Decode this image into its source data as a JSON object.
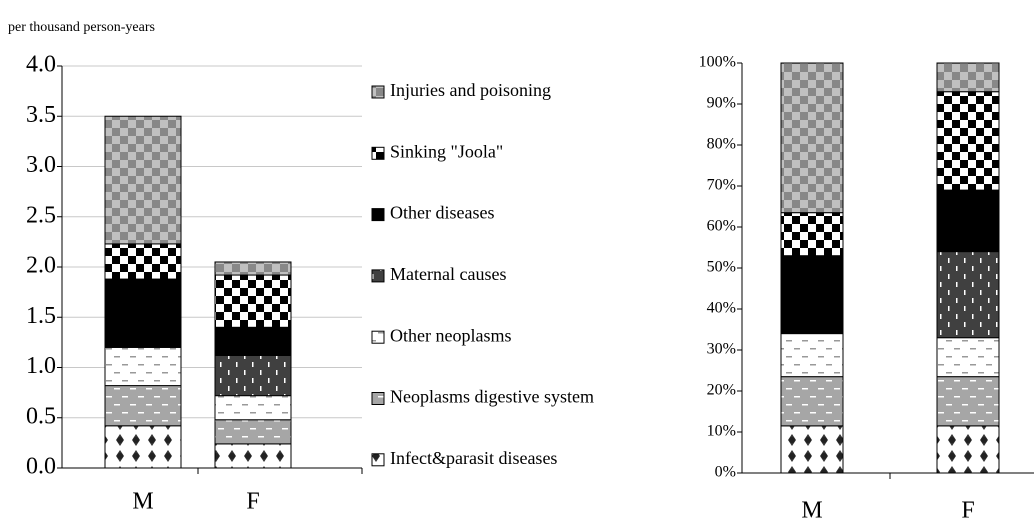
{
  "chart_data": [
    {
      "type": "stacked-bar",
      "subtitle": "per thousand person-years",
      "categories": [
        "M",
        "F"
      ],
      "series": [
        {
          "name": "Infect&parasit diseases",
          "color": "#ffffff",
          "values": [
            0.42,
            0.24
          ]
        },
        {
          "name": "Neoplasms digestive system",
          "color": "#a6a6a6",
          "values": [
            0.4,
            0.24
          ]
        },
        {
          "name": "Other neoplasms",
          "color": "#ffffff",
          "values": [
            0.38,
            0.24
          ]
        },
        {
          "name": "Maternal causes",
          "color": "#404040",
          "values": [
            0,
            0.4
          ]
        },
        {
          "name": "Other diseases",
          "color": "#000000",
          "values": [
            0.68,
            0.28
          ]
        },
        {
          "name": "Sinking \"Joola\"",
          "color": "#ffffff",
          "values": [
            0.35,
            0.52
          ]
        },
        {
          "name": "Injuries and poisoning",
          "color": "#c0c0c0",
          "values": [
            1.27,
            0.13
          ]
        }
      ],
      "ylim": [
        0,
        4
      ],
      "yticks": [
        {
          "value": 0,
          "label": "0.0"
        },
        0.5,
        {
          "value": 1,
          "label": "1.0"
        },
        1.5,
        {
          "value": 2,
          "label": "2.0"
        },
        2.5,
        {
          "value": 3,
          "label": "3.0"
        },
        3.5,
        {
          "value": 4,
          "label": "4.0"
        }
      ],
      "grid": true,
      "legend": "right"
    },
    {
      "type": "stacked-bar",
      "categories": [
        "M",
        "F"
      ],
      "series": [
        {
          "color": "#ffffff",
          "values": [
            11.5,
            11.5
          ]
        },
        {
          "color": "#a6a6a6",
          "values": [
            12,
            12
          ]
        },
        {
          "color": "#ffffff",
          "values": [
            10.5,
            9.5
          ]
        },
        {
          "color": "#404040",
          "values": [
            0,
            21
          ]
        },
        {
          "color": "#000000",
          "values": [
            19,
            15
          ]
        },
        {
          "color": "#ffffff",
          "values": [
            10.5,
            24
          ]
        },
        {
          "color": "#c0c0c0",
          "values": [
            36.5,
            7
          ]
        }
      ],
      "ylim": [
        0,
        100
      ],
      "yticks": [
        {
          "value": 0,
          "label": "0%"
        },
        {
          "value": 10,
          "label": "10%"
        },
        {
          "value": 20,
          "label": "20%"
        },
        {
          "value": 30,
          "label": "30%"
        },
        {
          "value": 40,
          "label": "40%"
        },
        {
          "value": 50,
          "label": "50%"
        },
        {
          "value": 60,
          "label": "60%"
        },
        {
          "value": 70,
          "label": "70%"
        },
        {
          "value": 80,
          "label": "80%"
        },
        {
          "value": 90,
          "label": "90%"
        },
        {
          "value": 100,
          "label": "100%"
        }
      ],
      "grid": false
    }
  ]
}
